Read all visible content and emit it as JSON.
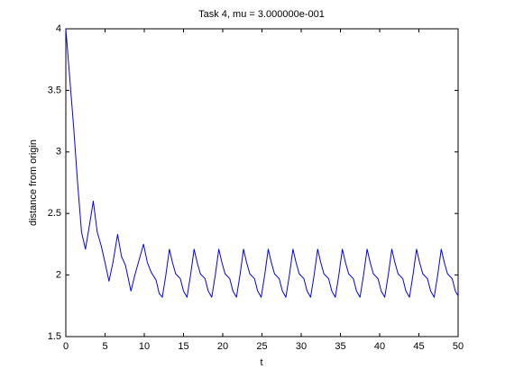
{
  "chart_data": {
    "type": "line",
    "title": "Task 4, mu = 3.000000e-001",
    "x_label": "t",
    "y_label": "distance from origin",
    "xlim": [
      0,
      50
    ],
    "ylim": [
      1.5,
      4
    ],
    "xticks": [
      0,
      5,
      10,
      15,
      20,
      25,
      30,
      35,
      40,
      45,
      50
    ],
    "yticks": [
      1.5,
      2,
      2.5,
      3,
      3.5,
      4
    ],
    "grid": false,
    "series": [
      {
        "color": "#0000ff",
        "x": [
          0,
          0.5,
          1,
          1.5,
          2,
          2.5,
          3,
          3.5,
          4,
          4.5,
          5,
          5.5,
          6,
          6.6,
          7.1,
          7.6,
          8.3,
          8.8,
          9.9,
          10.4,
          10.9,
          11.5,
          11.9,
          12.3,
          12.75,
          13.2,
          13.6,
          14.0,
          14.6,
          15.0,
          15.45,
          15.9,
          16.35,
          16.75,
          17.15,
          17.75,
          18.15,
          18.6,
          19.05,
          19.5,
          19.9,
          20.3,
          20.9,
          21.3,
          21.75,
          22.2,
          22.65,
          23.05,
          23.45,
          24.05,
          24.45,
          24.9,
          25.35,
          25.8,
          26.2,
          26.6,
          27.2,
          27.6,
          28.05,
          28.5,
          28.95,
          29.35,
          29.75,
          30.35,
          30.75,
          31.2,
          31.65,
          32.1,
          32.5,
          32.9,
          33.5,
          33.9,
          34.35,
          34.8,
          35.25,
          35.65,
          36.05,
          36.65,
          37.05,
          37.5,
          37.95,
          38.4,
          38.8,
          39.2,
          39.8,
          40.2,
          40.65,
          41.1,
          41.55,
          41.95,
          42.35,
          42.95,
          43.35,
          43.8,
          44.25,
          44.7,
          45.1,
          45.5,
          46.1,
          46.5,
          46.95,
          47.4,
          47.85,
          48.25,
          48.65,
          49.25,
          49.65,
          50
        ],
        "values": [
          4.0,
          3.6,
          3.2,
          2.75,
          2.35,
          2.21,
          2.4,
          2.6,
          2.35,
          2.24,
          2.1,
          1.95,
          2.1,
          2.33,
          2.15,
          2.08,
          1.87,
          2.0,
          2.25,
          2.1,
          2.02,
          1.96,
          1.85,
          1.82,
          2.0,
          2.21,
          2.1,
          2.01,
          1.97,
          1.87,
          1.82,
          2.0,
          2.21,
          2.1,
          2.01,
          1.97,
          1.87,
          1.82,
          2.0,
          2.21,
          2.1,
          2.01,
          1.97,
          1.87,
          1.82,
          2.0,
          2.21,
          2.1,
          2.01,
          1.97,
          1.87,
          1.82,
          2.0,
          2.21,
          2.1,
          2.01,
          1.97,
          1.87,
          1.82,
          2.0,
          2.21,
          2.1,
          2.01,
          1.97,
          1.87,
          1.82,
          2.0,
          2.21,
          2.1,
          2.01,
          1.97,
          1.87,
          1.82,
          2.0,
          2.21,
          2.1,
          2.01,
          1.97,
          1.87,
          1.82,
          2.0,
          2.21,
          2.1,
          2.01,
          1.97,
          1.87,
          1.82,
          2.0,
          2.21,
          2.1,
          2.01,
          1.97,
          1.87,
          1.82,
          2.0,
          2.21,
          2.1,
          2.01,
          1.97,
          1.87,
          1.82,
          2.0,
          2.21,
          2.1,
          2.01,
          1.97,
          1.87,
          1.83
        ]
      }
    ]
  }
}
